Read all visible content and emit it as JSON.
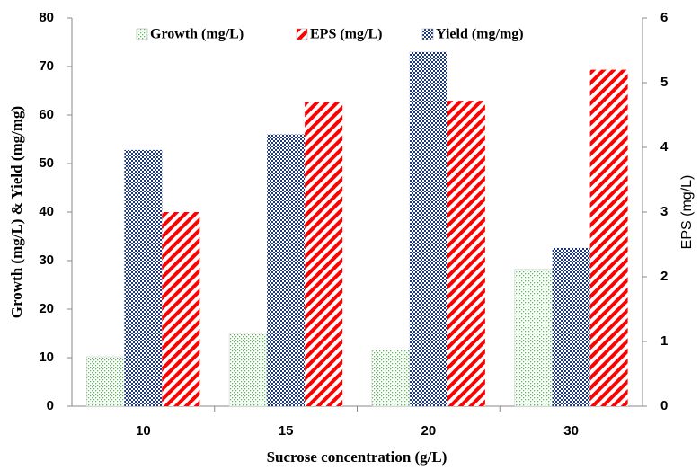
{
  "chart_data": {
    "type": "bar",
    "xlabel": "Sucrose concentration (g/L)",
    "ylabel": "Growth (mg/L) & Yield (mg/mg)",
    "y2label": "EPS (mg/L)",
    "categories": [
      "10",
      "15",
      "20",
      "30"
    ],
    "series": [
      {
        "name": "Growth (mg/L)",
        "color": "#5cb85c",
        "values": [
          10.2,
          15,
          11.6,
          28.2
        ]
      },
      {
        "name": "EPS (mg/L)",
        "color": "#ff0000",
        "values": [
          3.0,
          4.7,
          4.72,
          5.2
        ],
        "axis": "y2"
      },
      {
        "name": "Yield (mg/mg)",
        "color": "#1f3a7a",
        "values": [
          52.8,
          56,
          73,
          32.6
        ]
      }
    ],
    "ylim": [
      0,
      80
    ],
    "yticks": [
      0,
      10,
      20,
      30,
      40,
      50,
      60,
      70,
      80
    ],
    "y2lim": [
      0,
      6
    ],
    "y2ticks": [
      0,
      1,
      2,
      3,
      4,
      5,
      6
    ],
    "grid": false
  }
}
